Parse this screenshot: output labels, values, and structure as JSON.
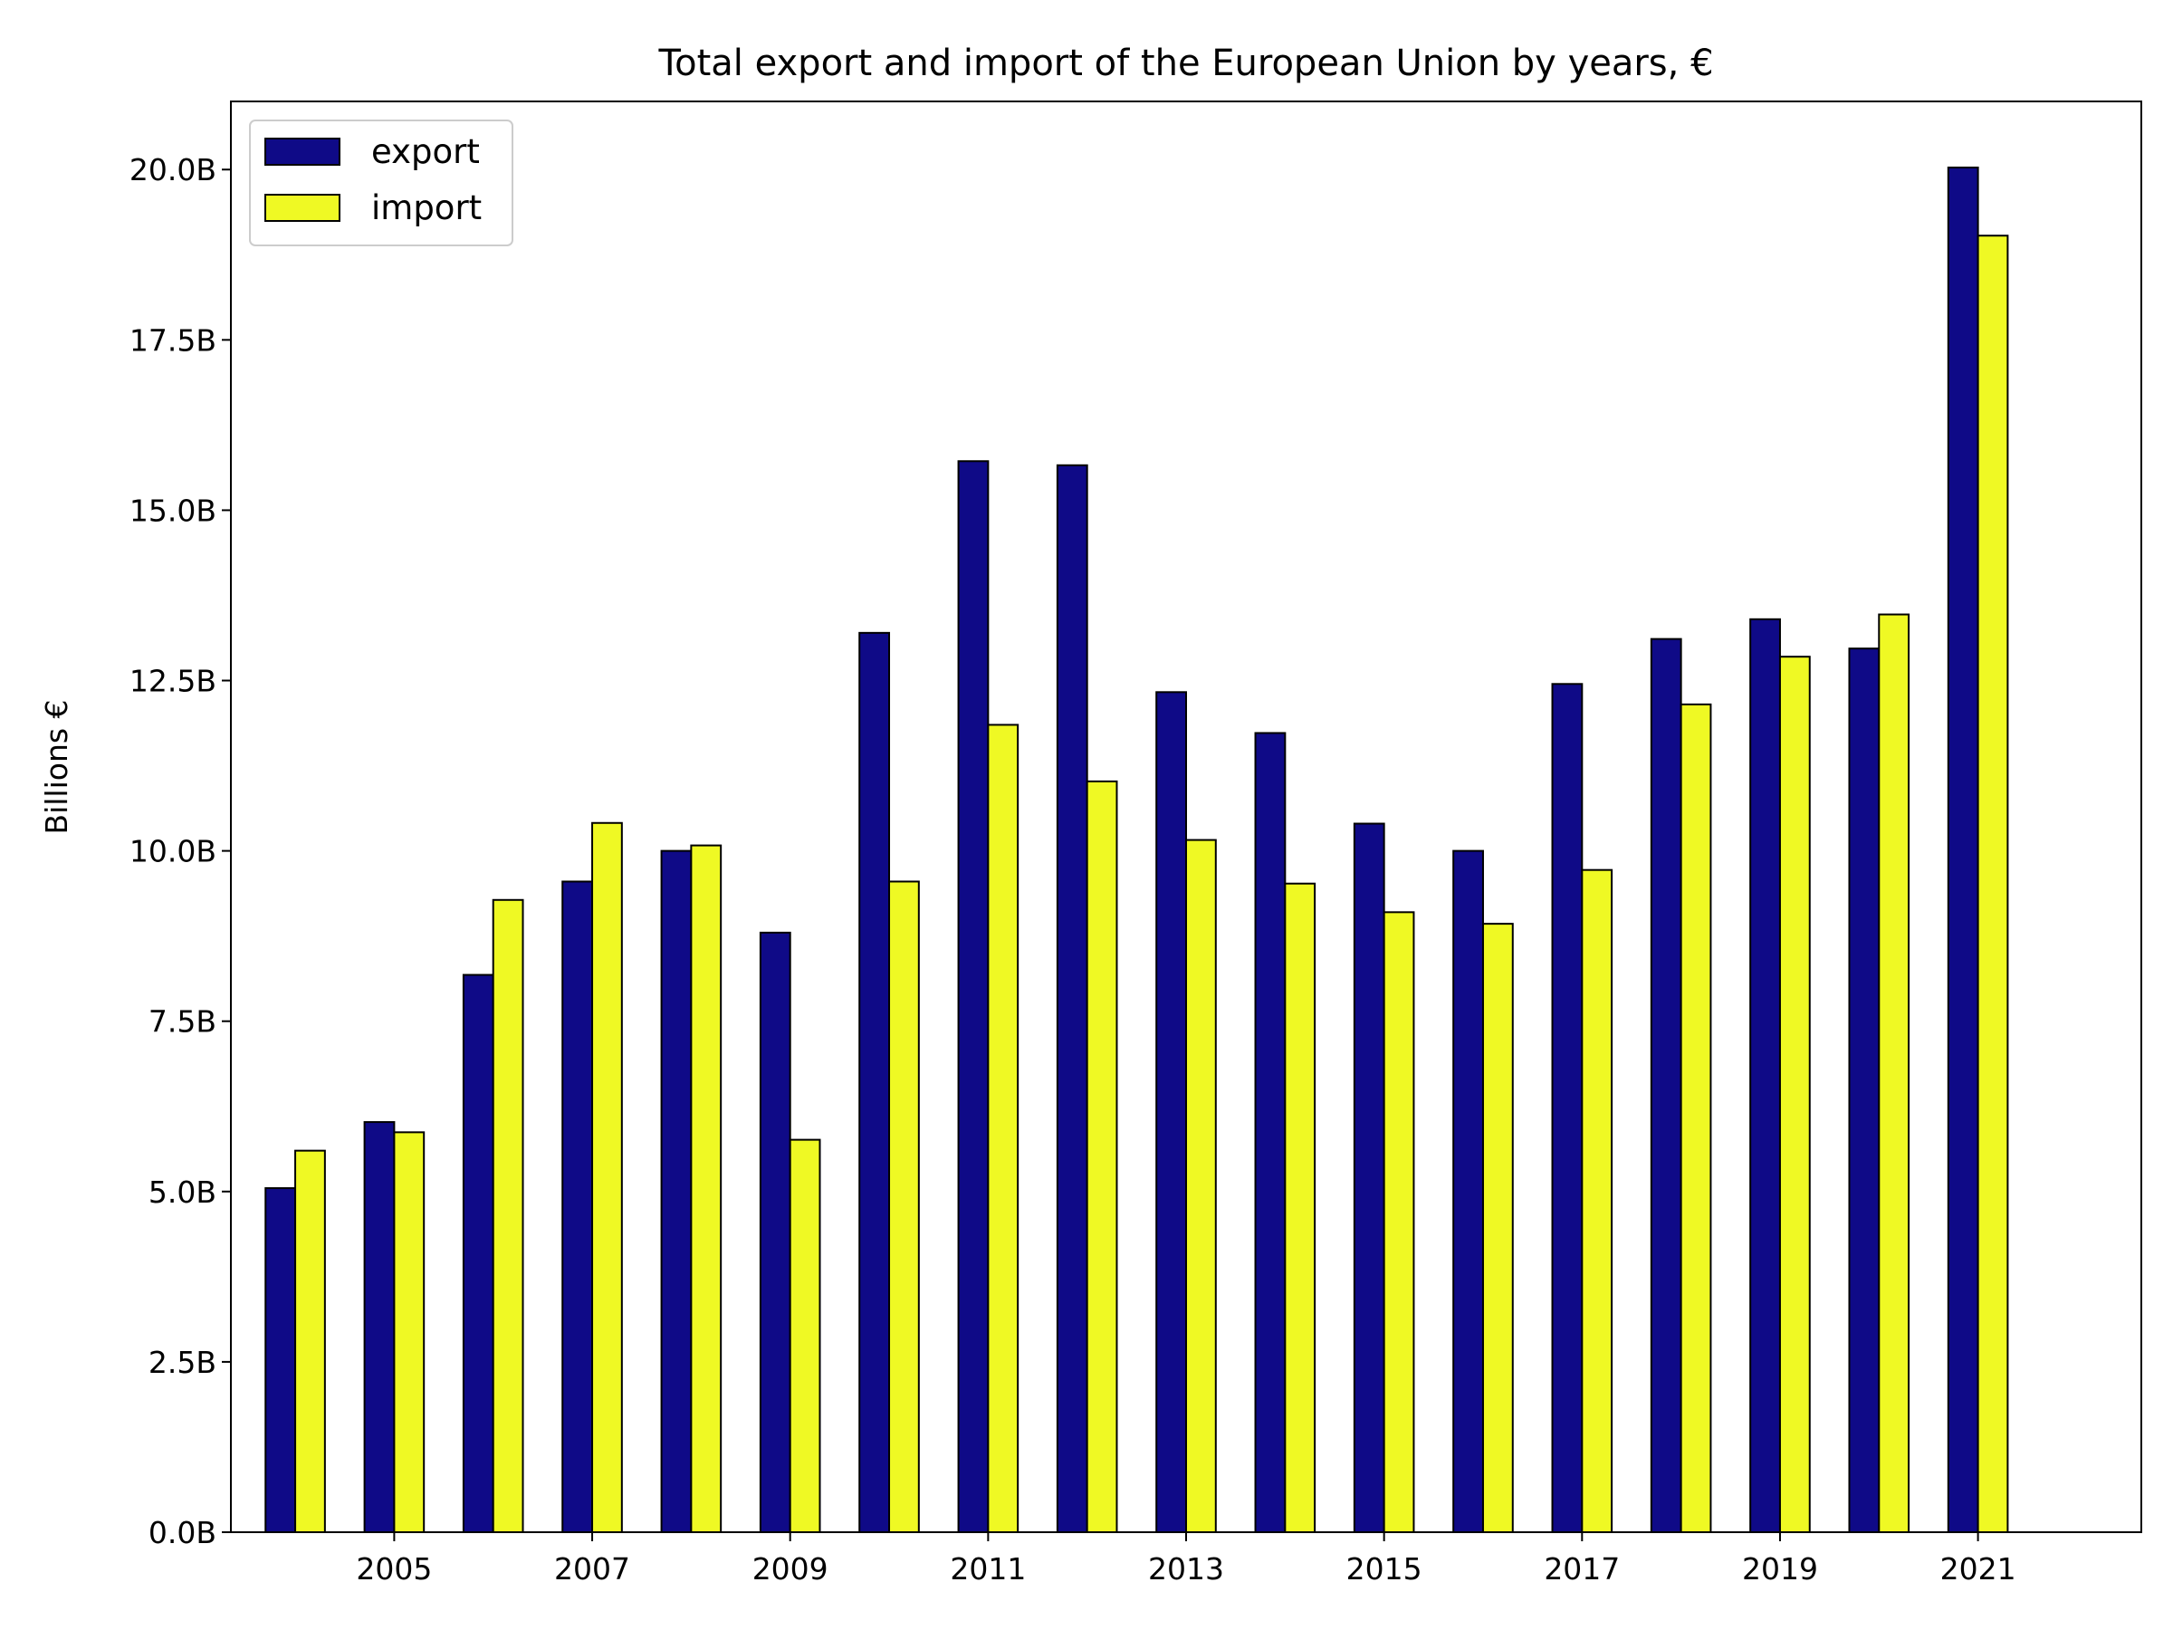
{
  "chart_data": {
    "type": "bar",
    "title": "Total export and import of the European Union by years, €",
    "xlabel": "",
    "ylabel": "Billions €",
    "categories": [
      "2004",
      "2005",
      "2006",
      "2007",
      "2008",
      "2009",
      "2010",
      "2011",
      "2012",
      "2013",
      "2014",
      "2015",
      "2016",
      "2017",
      "2018",
      "2019",
      "2020",
      "2021"
    ],
    "x_tick_labels": [
      "2005",
      "2007",
      "2009",
      "2011",
      "2013",
      "2015",
      "2017",
      "2019",
      "2021"
    ],
    "y_tick_labels": [
      "0.0B",
      "2.5B",
      "5.0B",
      "7.5B",
      "10.0B",
      "12.5B",
      "15.0B",
      "17.5B",
      "20.0B"
    ],
    "y_ticks": [
      0,
      2.5,
      5,
      7.5,
      10,
      12.5,
      15,
      17.5,
      20
    ],
    "ylim": [
      0,
      21
    ],
    "legend_position": "top-left",
    "grid": false,
    "series": [
      {
        "name": "export",
        "color": "#0f0a87",
        "values": [
          5.05,
          6.02,
          8.18,
          9.55,
          10.0,
          8.8,
          13.2,
          15.72,
          15.66,
          12.33,
          11.73,
          10.4,
          10.0,
          12.45,
          13.11,
          13.4,
          12.97,
          20.03
        ]
      },
      {
        "name": "import",
        "color": "#eff924",
        "values": [
          5.6,
          5.87,
          9.28,
          10.41,
          10.08,
          5.76,
          9.55,
          11.85,
          11.02,
          10.16,
          9.52,
          9.1,
          8.93,
          9.72,
          12.15,
          12.85,
          13.47,
          19.03
        ]
      }
    ]
  }
}
